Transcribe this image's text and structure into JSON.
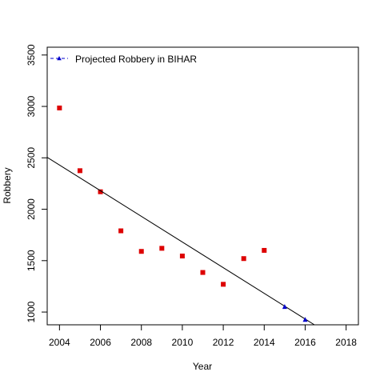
{
  "chart_data": {
    "type": "scatter",
    "title": "",
    "xlabel": "Year",
    "ylabel": "Robbery",
    "xlim": [
      2003.4,
      2018.6
    ],
    "ylim": [
      876,
      3576
    ],
    "xticks": [
      2004,
      2006,
      2008,
      2010,
      2012,
      2014,
      2016,
      2018
    ],
    "yticks": [
      1000,
      1500,
      2000,
      2500,
      3000,
      3500
    ],
    "grid": false,
    "legend_position": "top-left",
    "series": [
      {
        "kind": "points",
        "marker": "square",
        "color": "#dd0000",
        "x": [
          2004,
          2005,
          2006,
          2007,
          2008,
          2009,
          2010,
          2011,
          2012,
          2013,
          2014
        ],
        "y": [
          2985,
          2375,
          2170,
          1790,
          1590,
          1620,
          1545,
          1385,
          1270,
          1520,
          1600
        ]
      },
      {
        "kind": "line",
        "color": "#000000",
        "x": [
          2003.4,
          2016.45
        ],
        "y": [
          2505,
          876
        ]
      },
      {
        "name": "Projected Robbery in BIHAR",
        "kind": "points",
        "marker": "triangle",
        "color": "#0000cc",
        "x": [
          2015,
          2016
        ],
        "y": [
          1050,
          925
        ]
      }
    ]
  }
}
